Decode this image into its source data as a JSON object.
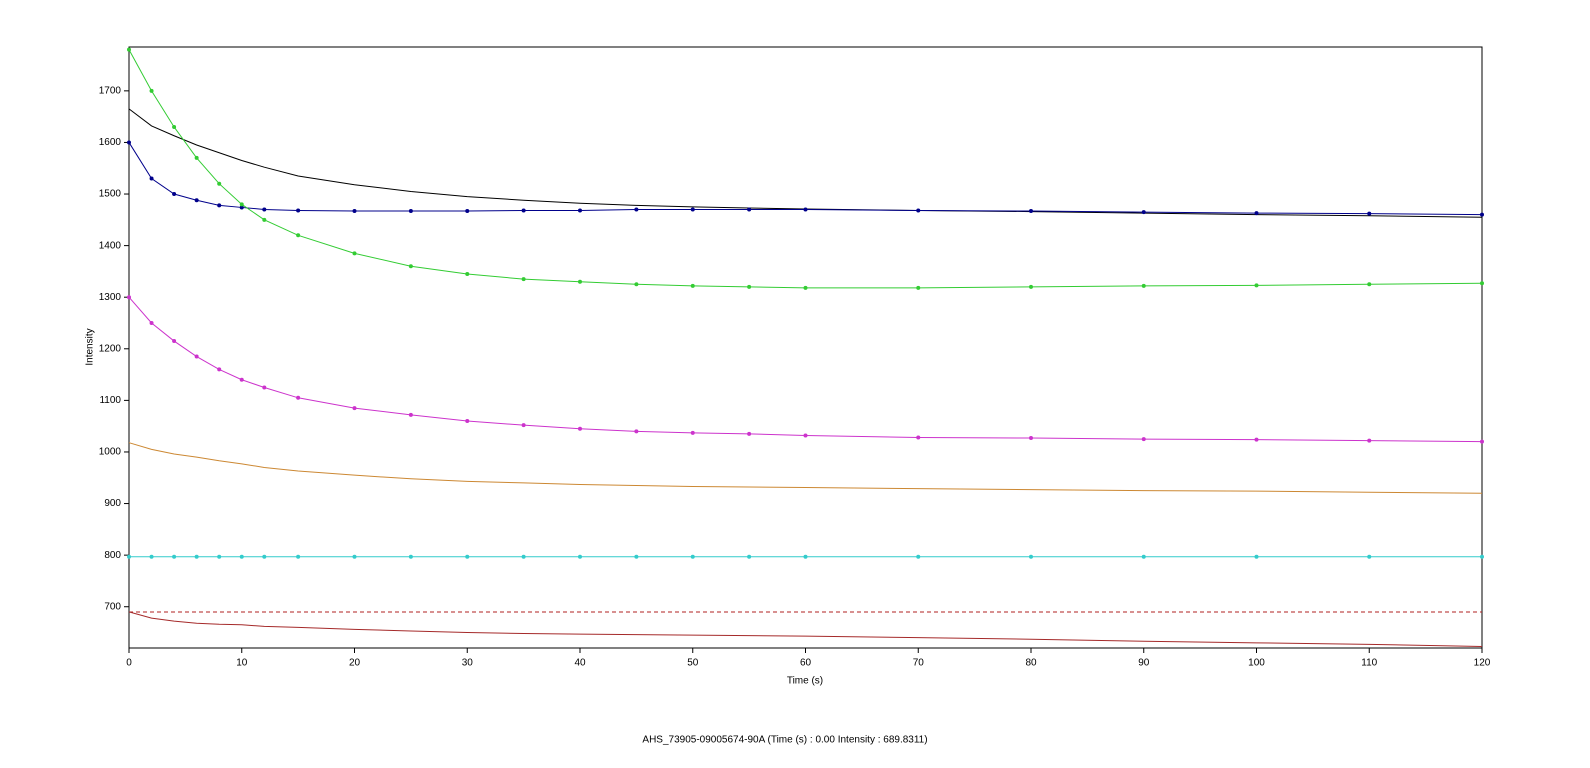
{
  "chart_data": {
    "type": "line",
    "x_label": "Time (s)",
    "y_label": "Intensity",
    "status_text": "AHS_73905-09005674-90A (Time (s) : 0.00  Intensity : 689.8311)",
    "x": [
      0,
      2,
      4,
      6,
      8,
      10,
      12,
      15,
      20,
      25,
      30,
      35,
      40,
      45,
      50,
      55,
      60,
      70,
      80,
      90,
      100,
      110,
      120
    ],
    "xlim": [
      0,
      120
    ],
    "xticks": [
      0,
      10,
      20,
      30,
      40,
      50,
      60,
      70,
      80,
      90,
      100,
      110,
      120
    ],
    "ylim": [
      620,
      1785
    ],
    "yticks": [
      700,
      800,
      900,
      1000,
      1100,
      1200,
      1300,
      1400,
      1500,
      1600,
      1700
    ],
    "reference_line": {
      "value": 689.8311,
      "color": "#b22222"
    },
    "series": [
      {
        "color": "#000000",
        "markers": false,
        "values": [
          1665,
          1632,
          1613,
          1595,
          1580,
          1565,
          1552,
          1535,
          1518,
          1505,
          1495,
          1488,
          1482,
          1478,
          1475,
          1473,
          1471,
          1468,
          1466,
          1463,
          1460,
          1458,
          1455
        ]
      },
      {
        "color": "#00008b",
        "markers": true,
        "values": [
          1600,
          1530,
          1500,
          1488,
          1478,
          1474,
          1470,
          1468,
          1467,
          1467,
          1467,
          1468,
          1468,
          1470,
          1470,
          1470,
          1470,
          1468,
          1467,
          1465,
          1463,
          1462,
          1460
        ]
      },
      {
        "color": "#33cc33",
        "markers": true,
        "values": [
          1780,
          1700,
          1630,
          1570,
          1520,
          1480,
          1450,
          1420,
          1385,
          1360,
          1345,
          1335,
          1330,
          1325,
          1322,
          1320,
          1318,
          1318,
          1320,
          1322,
          1323,
          1325,
          1327
        ]
      },
      {
        "color": "#cc33cc",
        "markers": true,
        "values": [
          1300,
          1250,
          1215,
          1185,
          1160,
          1140,
          1125,
          1105,
          1085,
          1072,
          1060,
          1052,
          1045,
          1040,
          1037,
          1035,
          1032,
          1028,
          1027,
          1025,
          1024,
          1022,
          1020
        ]
      },
      {
        "color": "#cc8833",
        "markers": false,
        "values": [
          1018,
          1005,
          996,
          990,
          983,
          977,
          970,
          963,
          955,
          948,
          943,
          940,
          937,
          935,
          933,
          932,
          931,
          929,
          927,
          925,
          924,
          922,
          920
        ]
      },
      {
        "color": "#33cccc",
        "markers": true,
        "values": [
          797,
          797,
          797,
          797,
          797,
          797,
          797,
          797,
          797,
          797,
          797,
          797,
          797,
          797,
          797,
          797,
          797,
          797,
          797,
          797,
          797,
          797,
          797
        ]
      },
      {
        "color": "#a52a2a",
        "markers": false,
        "values": [
          690,
          678,
          672,
          668,
          666,
          665,
          662,
          660,
          656,
          653,
          650,
          648,
          647,
          646,
          645,
          644,
          643,
          640,
          637,
          633,
          630,
          627,
          623
        ]
      }
    ]
  }
}
